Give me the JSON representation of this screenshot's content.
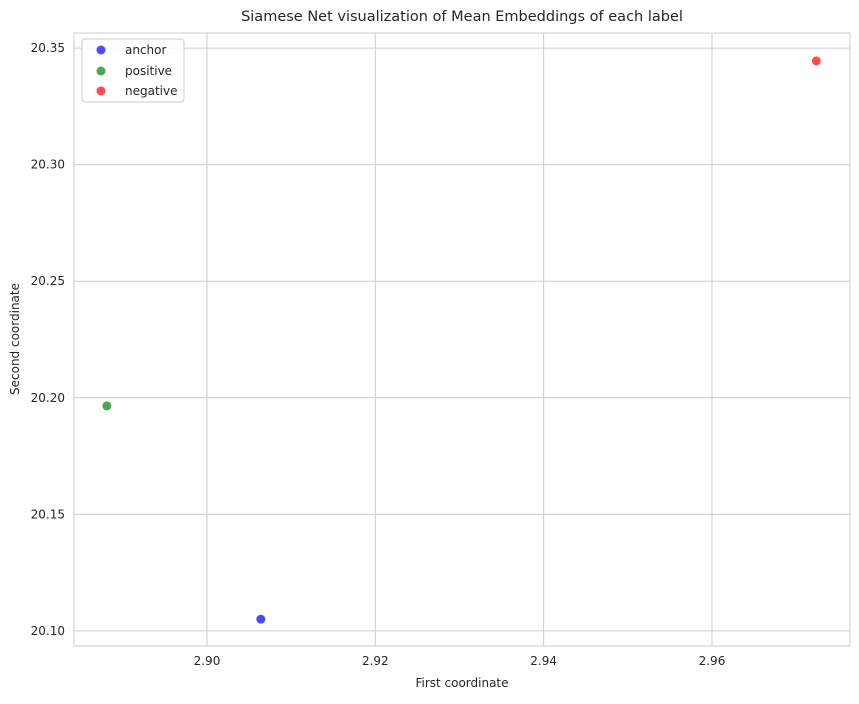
{
  "chart_data": {
    "type": "scatter",
    "title": "Siamese Net visualization of Mean Embeddings of each label",
    "xlabel": "First coordinate",
    "ylabel": "Second coordinate",
    "xlim": [
      2.8842,
      2.9764
    ],
    "ylim": [
      20.0935,
      20.3565
    ],
    "xticks": [
      2.9,
      2.92,
      2.94,
      2.96
    ],
    "yticks": [
      20.1,
      20.15,
      20.2,
      20.25,
      20.3,
      20.35
    ],
    "xtick_labels": [
      "2.90",
      "2.92",
      "2.94",
      "2.96"
    ],
    "ytick_labels": [
      "20.10",
      "20.15",
      "20.20",
      "20.25",
      "20.30",
      "20.35"
    ],
    "grid": true,
    "legend_position": "top-left",
    "series": [
      {
        "name": "anchor",
        "color": "#0000ff",
        "x": [
          2.9064
        ],
        "y": [
          20.105
        ]
      },
      {
        "name": "positive",
        "color": "#008000",
        "x": [
          2.8881
        ],
        "y": [
          20.1965
        ]
      },
      {
        "name": "negative",
        "color": "#ff0000",
        "x": [
          2.9724
        ],
        "y": [
          20.3445
        ]
      }
    ]
  }
}
